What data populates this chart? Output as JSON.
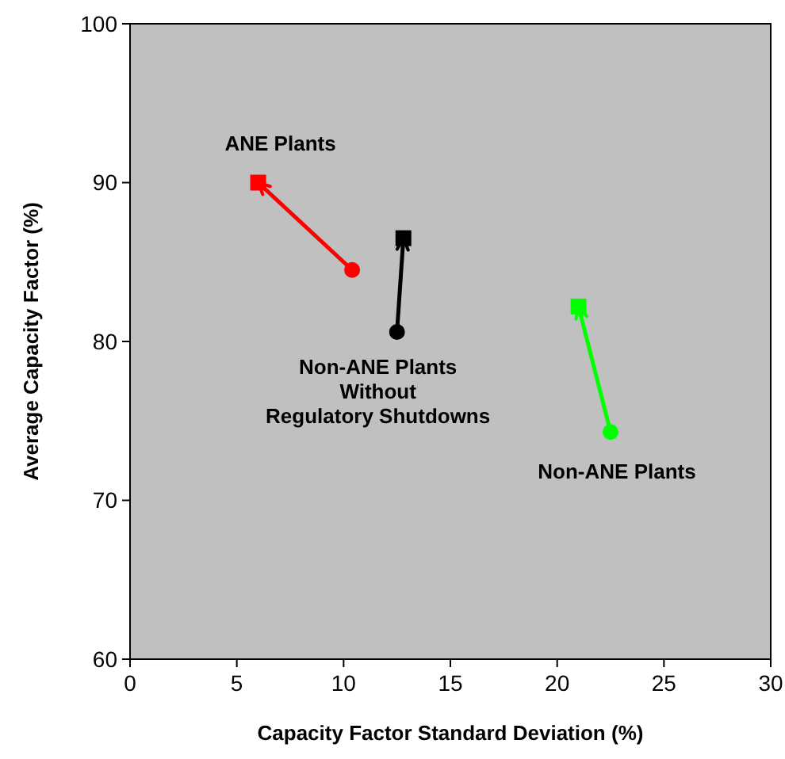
{
  "chart_data": {
    "type": "line",
    "xlabel": "Capacity Factor Standard Deviation (%)",
    "ylabel": "Average Capacity Factor (%)",
    "xlim": [
      0,
      30
    ],
    "ylim": [
      60,
      100
    ],
    "xticks": [
      0,
      5,
      10,
      15,
      20,
      25,
      30
    ],
    "yticks": [
      60,
      70,
      80,
      90,
      100
    ],
    "grid": false,
    "series": [
      {
        "name": "ANE Plants",
        "color": "#ff0000",
        "x": [
          10.4,
          6.0
        ],
        "values": [
          84.5,
          90.0
        ],
        "marker": "none"
      },
      {
        "name": "Non-ANE Plants\nWithout\nRegulatory Shutdowns",
        "color": "#000000",
        "x": [
          12.5,
          12.8
        ],
        "values": [
          80.6,
          86.5
        ],
        "marker": "none"
      },
      {
        "name": "Non-ANE Plants",
        "color": "#00ff00",
        "x": [
          22.5,
          21.0
        ],
        "values": [
          74.3,
          82.2
        ],
        "marker": "none"
      },
      {
        "type": "scatter",
        "color": "#ff0000",
        "x": [
          10.4
        ],
        "values": [
          84.5
        ],
        "marker": "circle"
      },
      {
        "type": "scatter",
        "color": "#ff0000",
        "x": [
          6.0
        ],
        "values": [
          90.0
        ],
        "marker": "square"
      },
      {
        "type": "scatter",
        "color": "#000000",
        "x": [
          12.5
        ],
        "values": [
          80.6
        ],
        "marker": "circle"
      },
      {
        "type": "scatter",
        "color": "#000000",
        "x": [
          12.8
        ],
        "values": [
          86.5
        ],
        "marker": "square"
      },
      {
        "type": "scatter",
        "color": "#00ff00",
        "x": [
          22.5
        ],
        "values": [
          74.3
        ],
        "marker": "circle"
      },
      {
        "type": "scatter",
        "color": "#00ff00",
        "x": [
          21.0
        ],
        "values": [
          82.2
        ],
        "marker": "square"
      }
    ]
  }
}
